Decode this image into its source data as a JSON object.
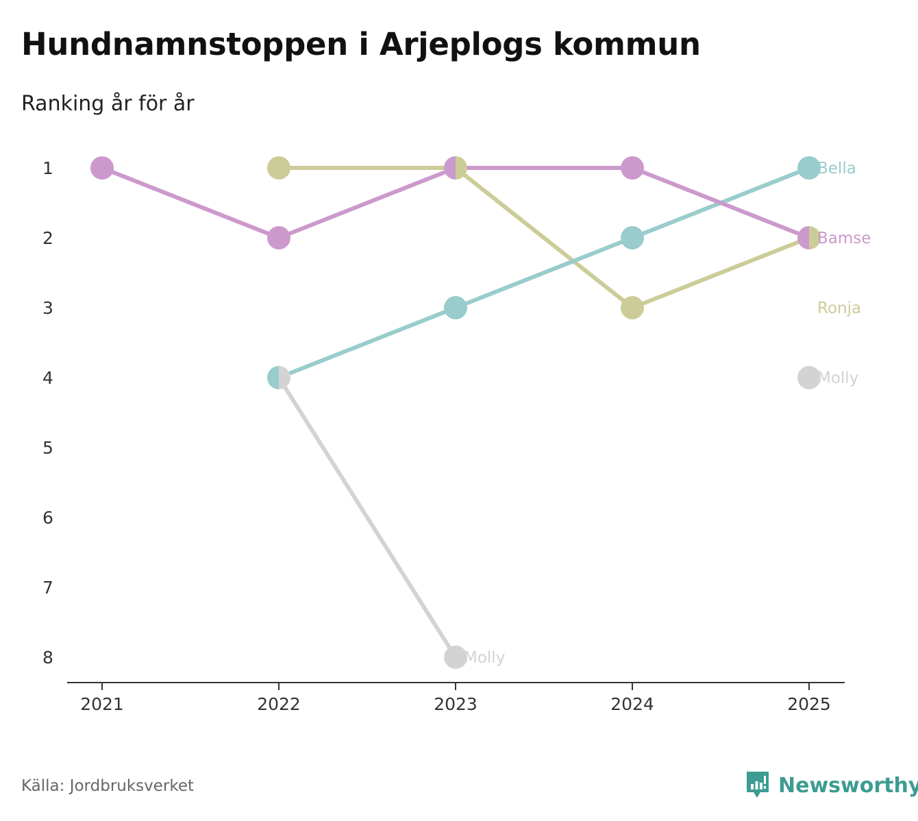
{
  "title": "Hundnamnstoppen i Arjeplogs kommun",
  "subtitle": "Ranking år för år",
  "source": "Källa: Jordbruksverket",
  "brand": "Newsworthy",
  "brand_icon": "newsworthy-logo-icon",
  "colors": {
    "Bamse": "#cc99cc",
    "Ronja": "#cccc99",
    "Bella": "#99cccc",
    "Molly": "#d3d3d3",
    "axis": "#333333",
    "brand": "#3d9c92"
  },
  "chart_data": {
    "type": "line",
    "title": "Hundnamnstoppen i Arjeplogs kommun",
    "subtitle": "Ranking år för år",
    "xlabel": "",
    "ylabel": "",
    "categories": [
      "2021",
      "2022",
      "2023",
      "2024",
      "2025"
    ],
    "y_ticks": [
      "1",
      "2",
      "3",
      "4",
      "5",
      "6",
      "7",
      "8"
    ],
    "ylim": [
      1,
      8
    ],
    "y_inverted": true,
    "series": [
      {
        "name": "Molly",
        "values": [
          null,
          4,
          8,
          null,
          4
        ],
        "end_label": "Molly",
        "mid_label": "Molly",
        "mid_label_index": 2
      },
      {
        "name": "Ronja",
        "values": [
          null,
          1,
          1,
          3,
          2
        ],
        "end_label": "Ronja"
      },
      {
        "name": "Bella",
        "values": [
          null,
          4,
          3,
          2,
          1
        ],
        "end_label": "Bella"
      },
      {
        "name": "Bamse",
        "values": [
          1,
          2,
          1,
          1,
          2
        ],
        "end_label": "Bamse"
      }
    ]
  }
}
